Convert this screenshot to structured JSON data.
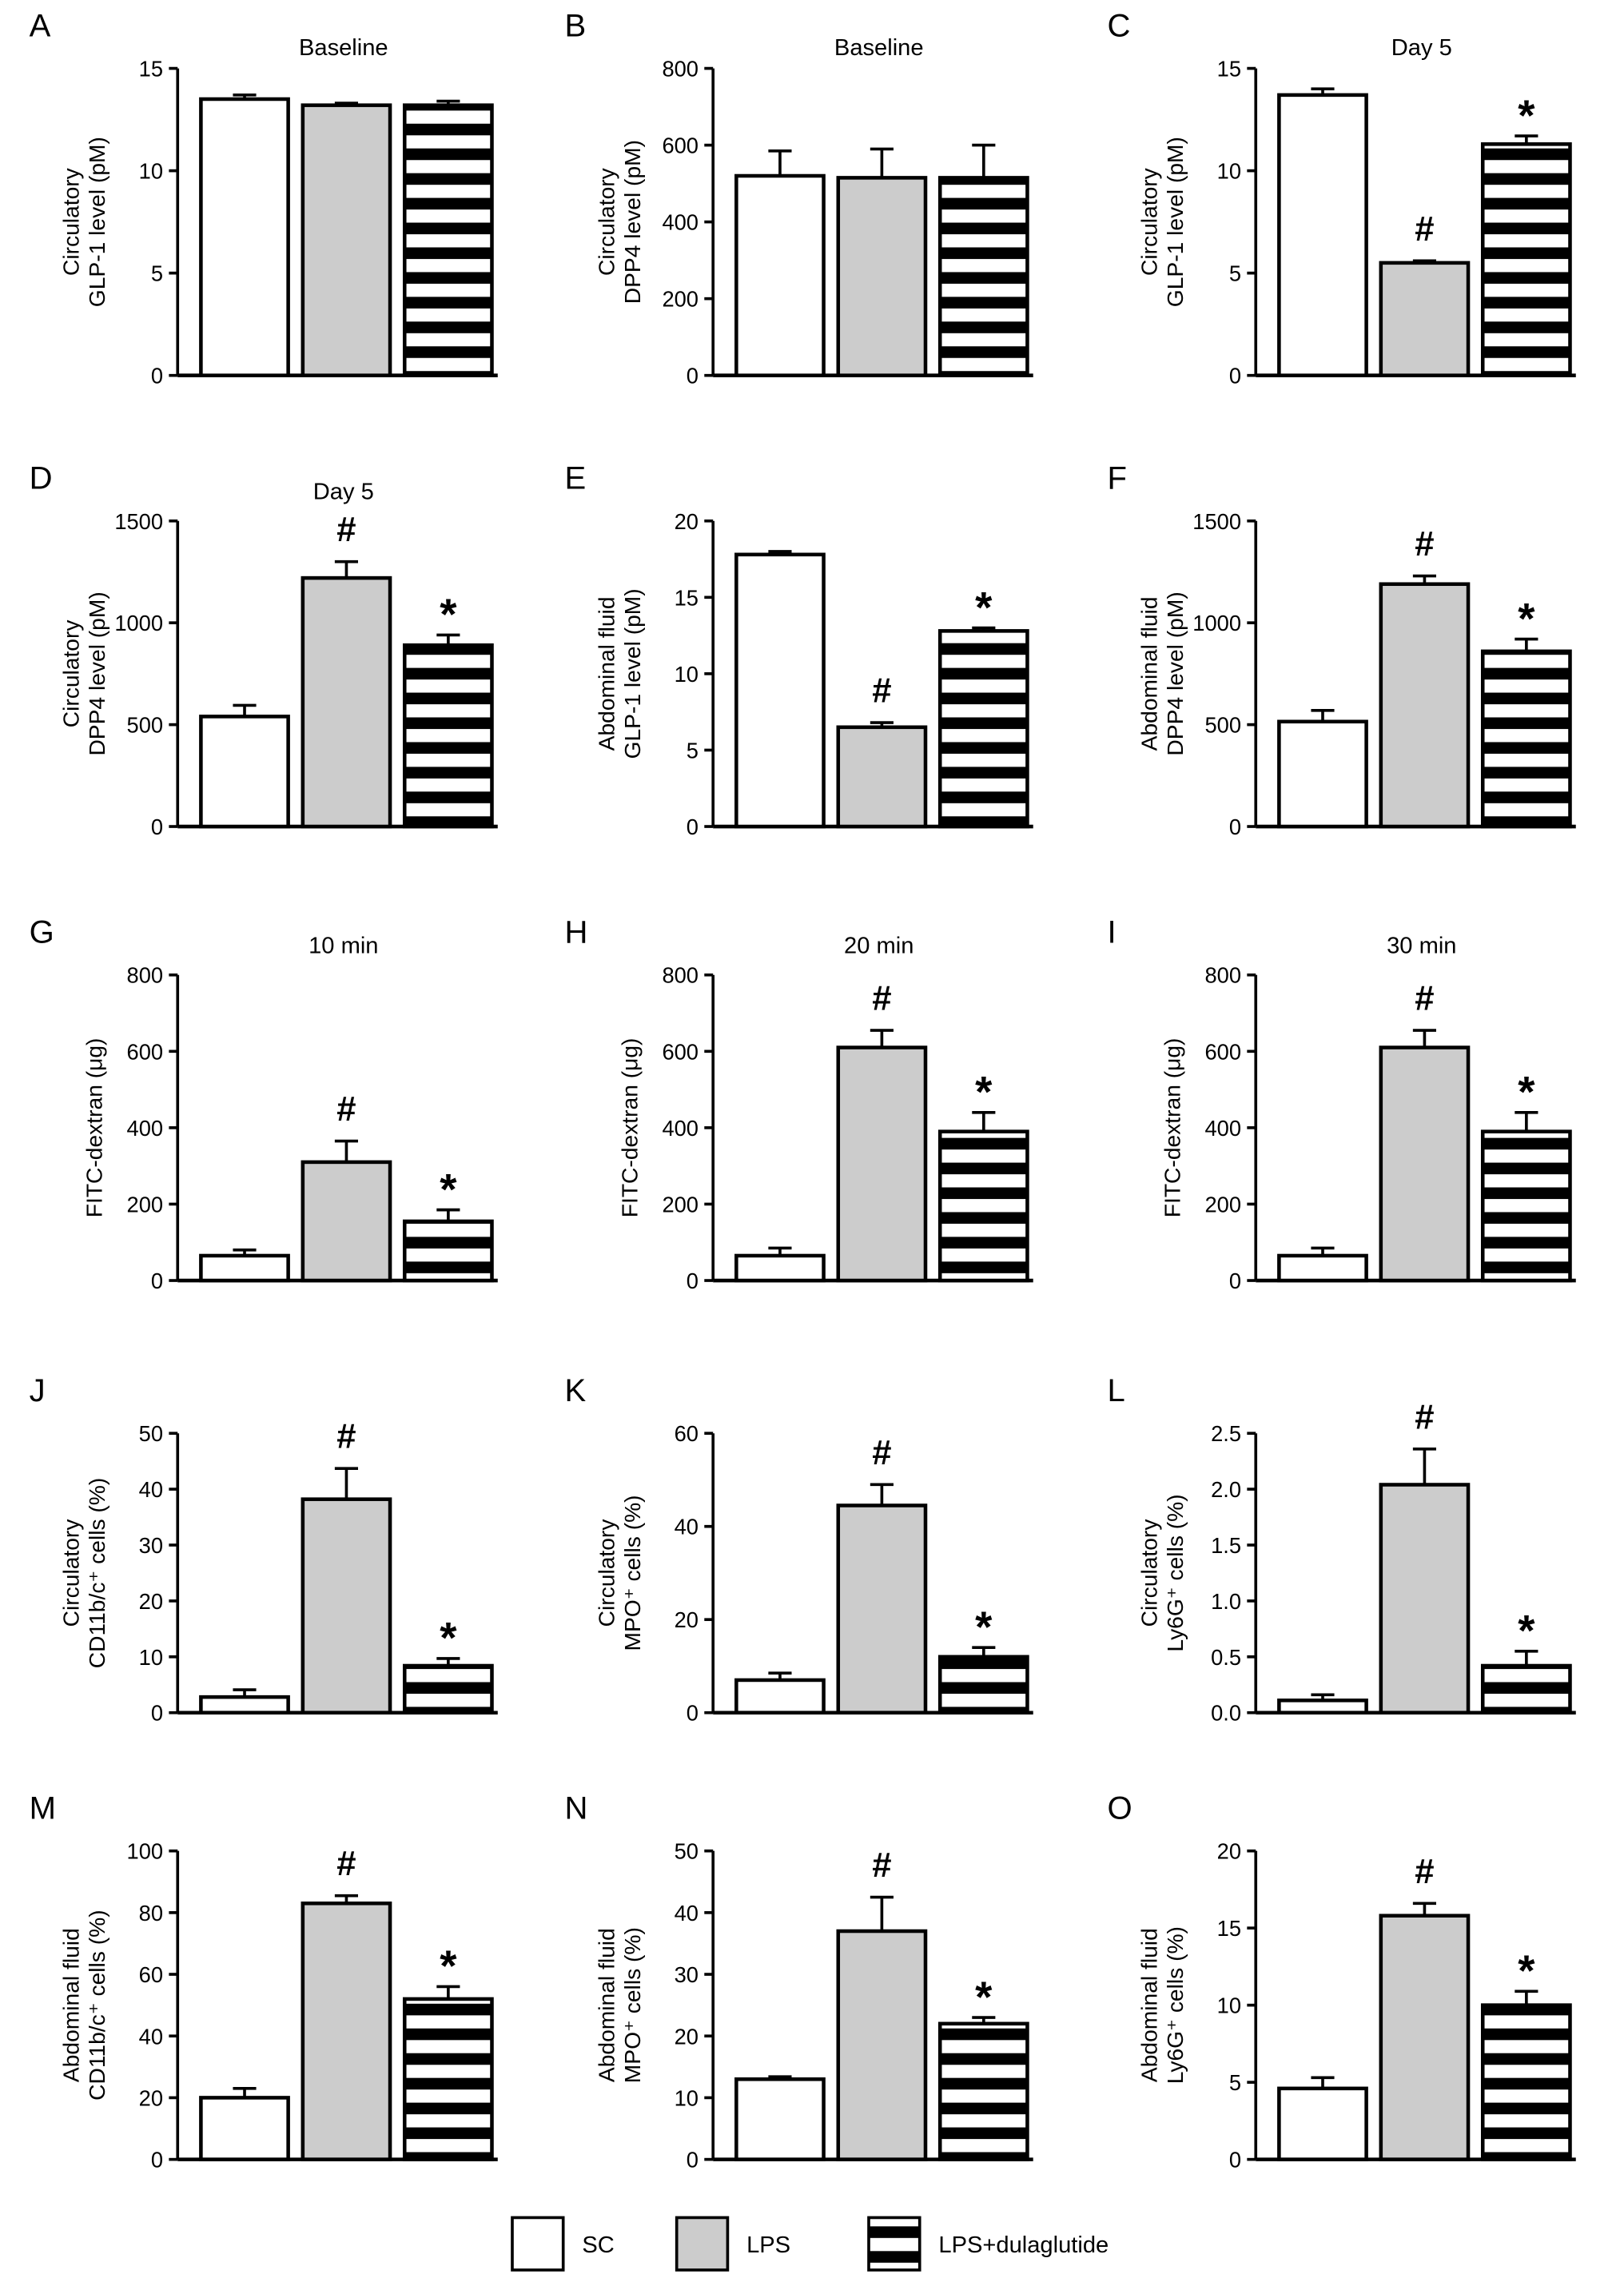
{
  "legend": {
    "placement": "bottom-center",
    "items": [
      {
        "name": "SC",
        "fill": "#ffffff",
        "pattern": "none"
      },
      {
        "name": "LPS",
        "fill": "#cccccc",
        "pattern": "none"
      },
      {
        "name": "LPS+dulaglutide",
        "fill": "#ffffff",
        "pattern": "horizontal-stripes"
      }
    ]
  },
  "colors": {
    "sc": "#ffffff",
    "lps": "#cccccc",
    "stripe": "#000000",
    "axis": "#000000"
  },
  "chart_data": [
    {
      "panel": "A",
      "type": "bar",
      "title": "Baseline",
      "ylabel": [
        "Circulatory",
        "GLP-1 level (pM)"
      ],
      "ylim": [
        0,
        15
      ],
      "yticks": [
        "0",
        "5",
        "10",
        "15"
      ],
      "categories": [
        "SC",
        "LPS",
        "LPS+dulaglutide"
      ],
      "values": [
        13.5,
        13.2,
        13.2
      ],
      "errors": [
        0.2,
        0.1,
        0.2
      ],
      "annotations": [
        "",
        "",
        ""
      ]
    },
    {
      "panel": "B",
      "type": "bar",
      "title": "Baseline",
      "ylabel": [
        "Circulatory",
        "DPP4 level (pM)"
      ],
      "ylim": [
        0,
        800
      ],
      "yticks": [
        "0",
        "200",
        "400",
        "600",
        "800"
      ],
      "categories": [
        "SC",
        "LPS",
        "LPS+dulaglutide"
      ],
      "values": [
        520,
        515,
        515
      ],
      "errors": [
        65,
        75,
        85
      ],
      "annotations": [
        "",
        "",
        ""
      ]
    },
    {
      "panel": "C",
      "type": "bar",
      "title": "Day 5",
      "ylabel": [
        "Circulatory",
        "GLP-1 level (pM)"
      ],
      "ylim": [
        0,
        15
      ],
      "yticks": [
        "0",
        "5",
        "10",
        "15"
      ],
      "categories": [
        "SC",
        "LPS",
        "LPS+dulaglutide"
      ],
      "values": [
        13.7,
        5.5,
        11.3
      ],
      "errors": [
        0.3,
        0.1,
        0.4
      ],
      "annotations": [
        "",
        "#",
        "*"
      ]
    },
    {
      "panel": "D",
      "type": "bar",
      "title": "Day 5",
      "ylabel": [
        "Circulatory",
        "DPP4 level (pM)"
      ],
      "ylim": [
        0,
        1500
      ],
      "yticks": [
        "0",
        "500",
        "1000",
        "1500"
      ],
      "categories": [
        "SC",
        "LPS",
        "LPS+dulaglutide"
      ],
      "values": [
        540,
        1220,
        890
      ],
      "errors": [
        55,
        80,
        50
      ],
      "annotations": [
        "",
        "#",
        "*"
      ]
    },
    {
      "panel": "E",
      "type": "bar",
      "title": "",
      "ylabel": [
        "Abdominal fluid",
        "GLP-1 level (pM)"
      ],
      "ylim": [
        0,
        20
      ],
      "yticks": [
        "0",
        "5",
        "10",
        "15",
        "20"
      ],
      "categories": [
        "SC",
        "LPS",
        "LPS+dulaglutide"
      ],
      "values": [
        17.8,
        6.5,
        12.8
      ],
      "errors": [
        0.2,
        0.3,
        0.2
      ],
      "annotations": [
        "",
        "#",
        "*"
      ]
    },
    {
      "panel": "F",
      "type": "bar",
      "title": "",
      "ylabel": [
        "Abdominal fluid",
        "DPP4 level (pM)"
      ],
      "ylim": [
        0,
        1500
      ],
      "yticks": [
        "0",
        "500",
        "1000",
        "1500"
      ],
      "categories": [
        "SC",
        "LPS",
        "LPS+dulaglutide"
      ],
      "values": [
        515,
        1190,
        860
      ],
      "errors": [
        55,
        40,
        60
      ],
      "annotations": [
        "",
        "#",
        "*"
      ]
    },
    {
      "panel": "G",
      "type": "bar",
      "title": "10 min",
      "ylabel": [
        "FITC-dextran (μg)"
      ],
      "ylim": [
        0,
        800
      ],
      "yticks": [
        "0",
        "200",
        "400",
        "600",
        "800"
      ],
      "categories": [
        "SC",
        "LPS",
        "LPS+dulaglutide"
      ],
      "values": [
        65,
        310,
        155
      ],
      "errors": [
        15,
        55,
        30
      ],
      "annotations": [
        "",
        "#",
        "*"
      ]
    },
    {
      "panel": "H",
      "type": "bar",
      "title": "20 min",
      "ylabel": [
        "FITC-dextran (μg)"
      ],
      "ylim": [
        0,
        800
      ],
      "yticks": [
        "0",
        "200",
        "400",
        "600",
        "800"
      ],
      "categories": [
        "SC",
        "LPS",
        "LPS+dulaglutide"
      ],
      "values": [
        65,
        610,
        390
      ],
      "errors": [
        20,
        45,
        50
      ],
      "annotations": [
        "",
        "#",
        "*"
      ]
    },
    {
      "panel": "I",
      "type": "bar",
      "title": "30 min",
      "ylabel": [
        "FITC-dextran (μg)"
      ],
      "ylim": [
        0,
        800
      ],
      "yticks": [
        "0",
        "200",
        "400",
        "600",
        "800"
      ],
      "categories": [
        "SC",
        "LPS",
        "LPS+dulaglutide"
      ],
      "values": [
        65,
        610,
        390
      ],
      "errors": [
        20,
        45,
        50
      ],
      "annotations": [
        "",
        "#",
        "*"
      ]
    },
    {
      "panel": "J",
      "type": "bar",
      "title": "",
      "ylabel": [
        "Circulatory",
        "CD11b/c⁺ cells (%)"
      ],
      "ylim": [
        0,
        50
      ],
      "yticks": [
        "0",
        "10",
        "20",
        "30",
        "40",
        "50"
      ],
      "categories": [
        "SC",
        "LPS",
        "LPS+dulaglutide"
      ],
      "values": [
        2.8,
        38.2,
        8.4
      ],
      "errors": [
        1.3,
        5.5,
        1.3
      ],
      "annotations": [
        "",
        "#",
        "*"
      ]
    },
    {
      "panel": "K",
      "type": "bar",
      "title": "",
      "ylabel": [
        "Circulatory",
        "MPO⁺ cells (%)"
      ],
      "ylim": [
        0,
        60
      ],
      "yticks": [
        "0",
        "20",
        "40",
        "60"
      ],
      "categories": [
        "SC",
        "LPS",
        "LPS+dulaglutide"
      ],
      "values": [
        7,
        44.5,
        12
      ],
      "errors": [
        1.5,
        4.5,
        2
      ],
      "annotations": [
        "",
        "#",
        "*"
      ]
    },
    {
      "panel": "L",
      "type": "bar",
      "title": "",
      "ylabel": [
        "Circulatory",
        "Ly6G⁺ cells (%)"
      ],
      "ylim": [
        0,
        2.5
      ],
      "yticks": [
        "0.0",
        "0.5",
        "1.0",
        "1.5",
        "2.0",
        "2.5"
      ],
      "categories": [
        "SC",
        "LPS",
        "LPS+dulaglutide"
      ],
      "values": [
        0.11,
        2.04,
        0.42
      ],
      "errors": [
        0.05,
        0.32,
        0.13
      ],
      "annotations": [
        "",
        "#",
        "*"
      ]
    },
    {
      "panel": "M",
      "type": "bar",
      "title": "",
      "ylabel": [
        "Abdominal fluid",
        "CD11b/c⁺ cells (%)"
      ],
      "ylim": [
        0,
        100
      ],
      "yticks": [
        "0",
        "20",
        "40",
        "60",
        "80",
        "100"
      ],
      "categories": [
        "SC",
        "LPS",
        "LPS+dulaglutide"
      ],
      "values": [
        20,
        83,
        52
      ],
      "errors": [
        3,
        2.5,
        4
      ],
      "annotations": [
        "",
        "#",
        "*"
      ]
    },
    {
      "panel": "N",
      "type": "bar",
      "title": "",
      "ylabel": [
        "Abdominal fluid",
        "MPO⁺ cells (%)"
      ],
      "ylim": [
        0,
        50
      ],
      "yticks": [
        "0",
        "10",
        "20",
        "30",
        "40",
        "50"
      ],
      "categories": [
        "SC",
        "LPS",
        "LPS+dulaglutide"
      ],
      "values": [
        13,
        37,
        22
      ],
      "errors": [
        0.4,
        5.5,
        1
      ],
      "annotations": [
        "",
        "#",
        "*"
      ]
    },
    {
      "panel": "O",
      "type": "bar",
      "title": "",
      "ylabel": [
        "Abdominal fluid",
        "Ly6G⁺ cells (%)"
      ],
      "ylim": [
        0,
        20
      ],
      "yticks": [
        "0",
        "5",
        "10",
        "15",
        "20"
      ],
      "categories": [
        "SC",
        "LPS",
        "LPS+dulaglutide"
      ],
      "values": [
        4.6,
        15.8,
        10
      ],
      "errors": [
        0.7,
        0.8,
        0.9
      ],
      "annotations": [
        "",
        "#",
        "*"
      ]
    }
  ]
}
